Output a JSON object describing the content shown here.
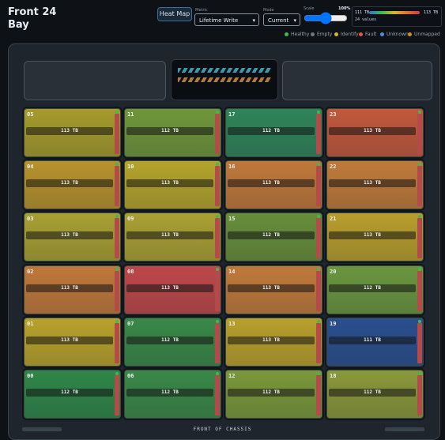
{
  "header": {
    "title": "Front 24 Bay",
    "heat_button": "Heat Map",
    "metric_label": "Metric",
    "metric_value": "Lifetime Write",
    "mode_label": "Mode",
    "mode_value": "Current",
    "scale_label": "Scale",
    "scale_value": "100%",
    "range_min": "111 TB",
    "range_max": "113 TB",
    "range_count": "24 values"
  },
  "legend": [
    {
      "label": "Healthy",
      "color": "#3fb950"
    },
    {
      "label": "Empty",
      "color": "#6e7681"
    },
    {
      "label": "Identify",
      "color": "#d4b82a"
    },
    {
      "label": "Fault",
      "color": "#e5534b"
    },
    {
      "label": "Unknown",
      "color": "#4c8fe0"
    },
    {
      "label": "Unmapped",
      "color": "#d08a30"
    }
  ],
  "bays": [
    [
      {
        "id": "05",
        "capacity": "113 TB",
        "color": "#a69b2c"
      },
      {
        "id": "11",
        "capacity": "112 TB",
        "color": "#6f963a"
      },
      {
        "id": "17",
        "capacity": "112 TB",
        "color": "#2f8459"
      },
      {
        "id": "23",
        "capacity": "113 TB",
        "color": "#c2583c"
      }
    ],
    [
      {
        "id": "04",
        "capacity": "113 TB",
        "color": "#b8922c"
      },
      {
        "id": "10",
        "capacity": "113 TB",
        "color": "#b4a42c"
      },
      {
        "id": "16",
        "capacity": "113 TB",
        "color": "#c0783a"
      },
      {
        "id": "22",
        "capacity": "113 TB",
        "color": "#c07a3a"
      }
    ],
    [
      {
        "id": "03",
        "capacity": "113 TB",
        "color": "#a8a032"
      },
      {
        "id": "09",
        "capacity": "113 TB",
        "color": "#aaa032"
      },
      {
        "id": "15",
        "capacity": "112 TB",
        "color": "#678e3a"
      },
      {
        "id": "21",
        "capacity": "113 TB",
        "color": "#b89e2c"
      }
    ],
    [
      {
        "id": "02",
        "capacity": "113 TB",
        "color": "#c0783a"
      },
      {
        "id": "08",
        "capacity": "113 TB",
        "color": "#be474a"
      },
      {
        "id": "14",
        "capacity": "113 TB",
        "color": "#c07a3a"
      },
      {
        "id": "20",
        "capacity": "112 TB",
        "color": "#6a963e"
      }
    ],
    [
      {
        "id": "01",
        "capacity": "113 TB",
        "color": "#b8a22c"
      },
      {
        "id": "07",
        "capacity": "112 TB",
        "color": "#3a8848"
      },
      {
        "id": "13",
        "capacity": "113 TB",
        "color": "#b8a02c"
      },
      {
        "id": "19",
        "capacity": "111 TB",
        "color": "#2a4f8e"
      }
    ],
    [
      {
        "id": "00",
        "capacity": "112 TB",
        "color": "#2f8648"
      },
      {
        "id": "06",
        "capacity": "112 TB",
        "color": "#3a8848"
      },
      {
        "id": "12",
        "capacity": "112 TB",
        "color": "#7a983a"
      },
      {
        "id": "18",
        "capacity": "112 TB",
        "color": "#8a983a"
      }
    ]
  ],
  "footer": {
    "label": "FRONT OF CHASSIS"
  }
}
